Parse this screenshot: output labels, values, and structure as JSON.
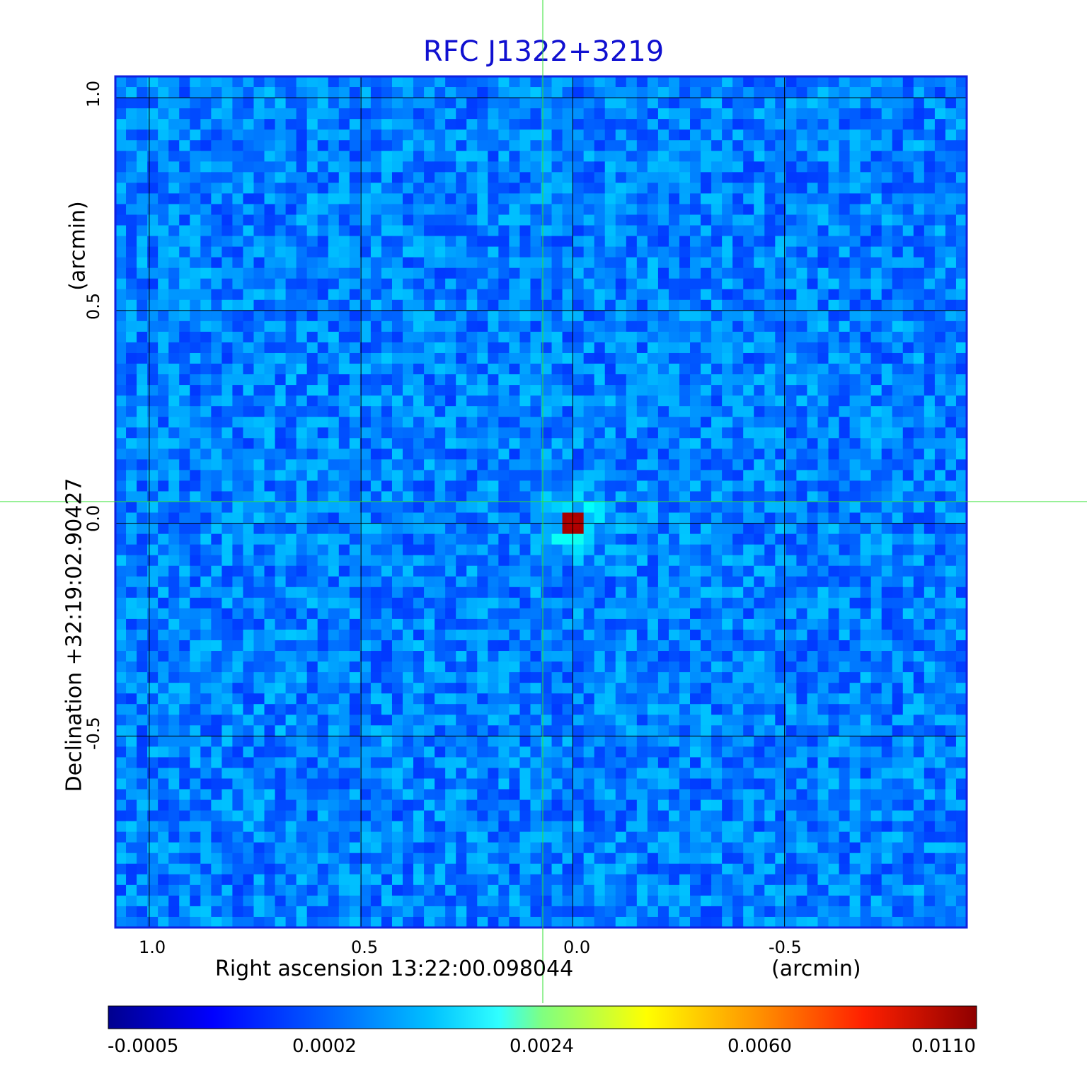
{
  "chart_data": {
    "type": "heatmap",
    "title": "RFC J1322+3219",
    "xlabel": "Right ascension  13:22:00.098044",
    "xunit": "(arcmin)",
    "ylabel": "Declination  +32:19:02.90427",
    "yunit": "(arcmin)",
    "x_ticks": [
      "1.0",
      "0.5",
      "0.0",
      "-0.5"
    ],
    "y_ticks": [
      "1.0",
      "0.5",
      "0.0",
      "-0.5"
    ],
    "xlim": [
      1.08,
      -0.93
    ],
    "ylim": [
      -0.95,
      1.05
    ],
    "grid": true,
    "colorscale": "jet",
    "colorbar_ticks": [
      "-0.0005",
      "0.0002",
      "0.0024",
      "0.0060",
      "0.0110"
    ],
    "colorbar_range": [
      -0.0005,
      0.011
    ],
    "peak": {
      "x": 0.0,
      "y": 0.0,
      "value": 0.011
    },
    "crosshair": {
      "x": 0.0,
      "y": 0.0
    }
  }
}
